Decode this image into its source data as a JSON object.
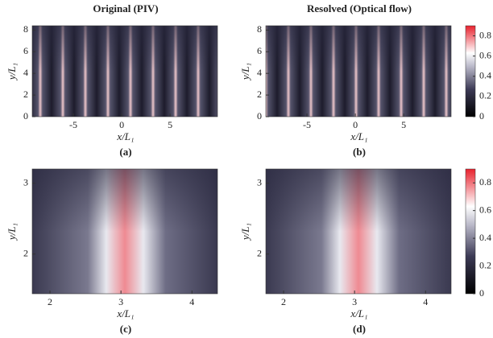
{
  "chart_data": [
    {
      "type": "heatmap",
      "title": "Original (PIV)",
      "caption": "(a)",
      "xlabel": "x/L₁",
      "ylabel": "y/L₁",
      "xlim": [
        -9.25,
        9.9
      ],
      "ylim": [
        0,
        8.4
      ],
      "xticks": [
        -5,
        0,
        5
      ],
      "yticks": [
        0,
        2,
        4,
        6,
        8
      ]
    },
    {
      "type": "heatmap",
      "title": "Resolved (Optical flow)",
      "caption": "(b)",
      "xlabel": "x/L₁",
      "ylabel": "y/L₁",
      "xlim": [
        -9.25,
        9.9
      ],
      "ylim": [
        0,
        8.4
      ],
      "xticks": [
        -5,
        0,
        5
      ],
      "yticks": [
        0,
        2,
        4,
        6,
        8
      ],
      "colorbar": {
        "lim": [
          0,
          0.9
        ],
        "ticks": [
          0,
          0.2,
          0.4,
          0.6,
          0.8
        ]
      }
    },
    {
      "type": "heatmap",
      "caption": "(c)",
      "xlabel": "x/L₁",
      "ylabel": "y/L₁",
      "xlim": [
        1.75,
        4.36
      ],
      "ylim": [
        1.44,
        3.2
      ],
      "xticks": [
        2,
        3,
        4
      ],
      "yticks": [
        2,
        3
      ]
    },
    {
      "type": "heatmap",
      "caption": "(d)",
      "xlabel": "x/L₁",
      "ylabel": "y/L₁",
      "xlim": [
        1.75,
        4.36
      ],
      "ylim": [
        1.44,
        3.2
      ],
      "xticks": [
        2,
        3,
        4
      ],
      "yticks": [
        2,
        3
      ],
      "colorbar": {
        "lim": [
          0,
          0.9
        ],
        "ticks": [
          0,
          0.2,
          0.4,
          0.6,
          0.8
        ]
      }
    }
  ]
}
